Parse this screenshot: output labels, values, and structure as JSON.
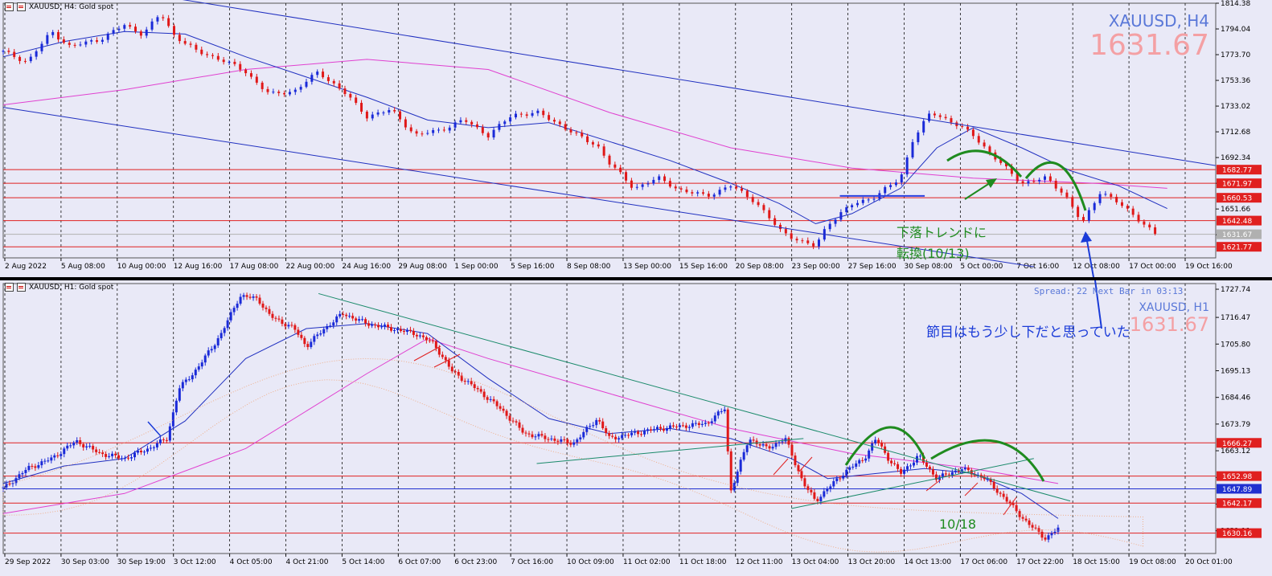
{
  "top": {
    "header": "XAUUSD, H4:  Gold spot",
    "symbol_label": "XAUUSD, H4",
    "price_label": "1631.67",
    "annotation_line1": "下落トレンドに",
    "annotation_line2": "転換(10/13)",
    "chart_data": {
      "type": "line",
      "ylim": [
        1613,
        1814.38
      ],
      "price_ticks": [
        "1814.38",
        "1794.04",
        "1773.70",
        "1753.36",
        "1733.02",
        "1712.68",
        "1692.34",
        "1672.00",
        "1651.66",
        "1631.32"
      ],
      "time_ticks": [
        "2 Aug 2022",
        "5 Aug 08:00",
        "10 Aug 00:00",
        "12 Aug 16:00",
        "17 Aug 08:00",
        "22 Aug 00:00",
        "24 Aug 16:00",
        "29 Aug 08:00",
        "1 Sep 00:00",
        "5 Sep 16:00",
        "8 Sep 08:00",
        "13 Sep 00:00",
        "15 Sep 16:00",
        "20 Sep 08:00",
        "23 Sep 00:00",
        "27 Sep 16:00",
        "30 Sep 08:00",
        "5 Oct 00:00",
        "7 Oct 16:00",
        "12 Oct 08:00",
        "17 Oct 00:00",
        "19 Oct 16:00"
      ],
      "levels": [
        {
          "price": 1682.77,
          "label": "1682.77",
          "color": "#e02020"
        },
        {
          "price": 1671.97,
          "label": "1671.97",
          "color": "#e02020"
        },
        {
          "price": 1660.53,
          "label": "1660.53",
          "color": "#e02020"
        },
        {
          "price": 1642.48,
          "label": "1642.48",
          "color": "#e02020"
        },
        {
          "price": 1631.67,
          "label": "1631.67",
          "color": "#b0b0b0"
        },
        {
          "price": 1621.77,
          "label": "1621.77",
          "color": "#e02020"
        }
      ],
      "price_path": [
        [
          0,
          1776
        ],
        [
          0.02,
          1768
        ],
        [
          0.04,
          1792
        ],
        [
          0.055,
          1780
        ],
        [
          0.08,
          1786
        ],
        [
          0.1,
          1797
        ],
        [
          0.115,
          1790
        ],
        [
          0.13,
          1806
        ],
        [
          0.14,
          1790
        ],
        [
          0.16,
          1776
        ],
        [
          0.18,
          1770
        ],
        [
          0.2,
          1760
        ],
        [
          0.22,
          1742
        ],
        [
          0.24,
          1745
        ],
        [
          0.26,
          1760
        ],
        [
          0.28,
          1745
        ],
        [
          0.3,
          1725
        ],
        [
          0.32,
          1730
        ],
        [
          0.34,
          1710
        ],
        [
          0.36,
          1714
        ],
        [
          0.38,
          1722
        ],
        [
          0.4,
          1710
        ],
        [
          0.42,
          1726
        ],
        [
          0.44,
          1728
        ],
        [
          0.46,
          1718
        ],
        [
          0.48,
          1706
        ],
        [
          0.49,
          1702
        ],
        [
          0.5,
          1688
        ],
        [
          0.52,
          1668
        ],
        [
          0.54,
          1676
        ],
        [
          0.56,
          1666
        ],
        [
          0.58,
          1662
        ],
        [
          0.6,
          1670
        ],
        [
          0.62,
          1658
        ],
        [
          0.64,
          1635
        ],
        [
          0.66,
          1625
        ],
        [
          0.67,
          1622
        ],
        [
          0.68,
          1640
        ],
        [
          0.7,
          1655
        ],
        [
          0.72,
          1662
        ],
        [
          0.74,
          1676
        ],
        [
          0.75,
          1706
        ],
        [
          0.765,
          1728
        ],
        [
          0.78,
          1722
        ],
        [
          0.8,
          1710
        ],
        [
          0.82,
          1690
        ],
        [
          0.84,
          1672
        ],
        [
          0.86,
          1676
        ],
        [
          0.875,
          1664
        ],
        [
          0.89,
          1640
        ],
        [
          0.905,
          1666
        ],
        [
          0.92,
          1656
        ],
        [
          0.935,
          1645
        ],
        [
          0.95,
          1631.67
        ]
      ],
      "ma_fast": [
        [
          0,
          1772
        ],
        [
          0.05,
          1784
        ],
        [
          0.1,
          1792
        ],
        [
          0.15,
          1790
        ],
        [
          0.2,
          1772
        ],
        [
          0.25,
          1756
        ],
        [
          0.3,
          1740
        ],
        [
          0.35,
          1722
        ],
        [
          0.4,
          1716
        ],
        [
          0.45,
          1720
        ],
        [
          0.5,
          1705
        ],
        [
          0.55,
          1690
        ],
        [
          0.6,
          1672
        ],
        [
          0.64,
          1656
        ],
        [
          0.67,
          1640
        ],
        [
          0.7,
          1648
        ],
        [
          0.74,
          1668
        ],
        [
          0.77,
          1700
        ],
        [
          0.8,
          1716
        ],
        [
          0.84,
          1700
        ],
        [
          0.88,
          1682
        ],
        [
          0.92,
          1670
        ],
        [
          0.96,
          1652
        ]
      ],
      "ma_slow": [
        [
          0,
          1734
        ],
        [
          0.1,
          1746
        ],
        [
          0.2,
          1762
        ],
        [
          0.3,
          1770
        ],
        [
          0.4,
          1762
        ],
        [
          0.5,
          1728
        ],
        [
          0.6,
          1700
        ],
        [
          0.7,
          1684
        ],
        [
          0.8,
          1676
        ],
        [
          0.9,
          1672
        ],
        [
          0.96,
          1668
        ]
      ],
      "channel_upper": [
        [
          0,
          1840
        ],
        [
          1,
          1686
        ]
      ],
      "channel_lower": [
        [
          0,
          1732
        ],
        [
          0.85,
          1606
        ]
      ],
      "hline_blue": {
        "price": 1662,
        "from": 0.69,
        "to": 0.76
      },
      "last_price": 1631.67
    }
  },
  "bottom": {
    "header": "XAUUSD, H1:  Gold spot",
    "spread_text": "Spread: 22   Next Bar in 03:13",
    "symbol_label": "XAUUSD, H1",
    "price_label": "1631.67",
    "annotation_main": "節目はもう少し下だと思っていた",
    "annotation_date": "10/18",
    "chart_data": {
      "type": "line",
      "ylim": [
        1622,
        1730
      ],
      "price_ticks": [
        "1727.74",
        "1716.47",
        "1705.80",
        "1695.13",
        "1684.46",
        "1673.79",
        "1663.12",
        "1652.45",
        "1641.78",
        "1631.11"
      ],
      "time_ticks": [
        "29 Sep 2022",
        "30 Sep 03:00",
        "30 Sep 19:00",
        "3 Oct 12:00",
        "4 Oct 05:00",
        "4 Oct 21:00",
        "5 Oct 14:00",
        "6 Oct 07:00",
        "6 Oct 23:00",
        "7 Oct 16:00",
        "10 Oct 09:00",
        "11 Oct 02:00",
        "11 Oct 18:00",
        "12 Oct 11:00",
        "13 Oct 04:00",
        "13 Oct 20:00",
        "14 Oct 13:00",
        "17 Oct 06:00",
        "17 Oct 22:00",
        "18 Oct 15:00",
        "19 Oct 08:00",
        "20 Oct 01:00"
      ],
      "levels": [
        {
          "price": 1666.27,
          "label": "1666.27",
          "color": "#e02020"
        },
        {
          "price": 1652.98,
          "label": "1652.98",
          "color": "#e02020"
        },
        {
          "price": 1647.89,
          "label": "1647.89",
          "color": "#2030d0"
        },
        {
          "price": 1642.17,
          "label": "1642.17",
          "color": "#e02020"
        },
        {
          "price": 1630.16,
          "label": "1630.16",
          "color": "#e02020"
        }
      ],
      "price_path": [
        [
          0,
          1648
        ],
        [
          0.02,
          1656
        ],
        [
          0.04,
          1660
        ],
        [
          0.06,
          1667
        ],
        [
          0.08,
          1662
        ],
        [
          0.1,
          1660
        ],
        [
          0.12,
          1664
        ],
        [
          0.135,
          1668
        ],
        [
          0.145,
          1688
        ],
        [
          0.16,
          1696
        ],
        [
          0.18,
          1710
        ],
        [
          0.195,
          1725
        ],
        [
          0.21,
          1724
        ],
        [
          0.22,
          1717
        ],
        [
          0.24,
          1712
        ],
        [
          0.25,
          1705
        ],
        [
          0.265,
          1712
        ],
        [
          0.28,
          1718
        ],
        [
          0.3,
          1714
        ],
        [
          0.32,
          1712
        ],
        [
          0.34,
          1710
        ],
        [
          0.355,
          1706
        ],
        [
          0.37,
          1695
        ],
        [
          0.39,
          1688
        ],
        [
          0.41,
          1680
        ],
        [
          0.43,
          1670
        ],
        [
          0.45,
          1668
        ],
        [
          0.47,
          1666
        ],
        [
          0.49,
          1676
        ],
        [
          0.5,
          1668
        ],
        [
          0.52,
          1670
        ],
        [
          0.54,
          1672
        ],
        [
          0.56,
          1673
        ],
        [
          0.58,
          1674
        ],
        [
          0.595,
          1680
        ],
        [
          0.6,
          1647
        ],
        [
          0.615,
          1668
        ],
        [
          0.63,
          1664
        ],
        [
          0.645,
          1668
        ],
        [
          0.66,
          1650
        ],
        [
          0.67,
          1643
        ],
        [
          0.68,
          1648
        ],
        [
          0.695,
          1655
        ],
        [
          0.71,
          1660
        ],
        [
          0.72,
          1668
        ],
        [
          0.73,
          1660
        ],
        [
          0.74,
          1654
        ],
        [
          0.755,
          1661
        ],
        [
          0.77,
          1652
        ],
        [
          0.79,
          1656
        ],
        [
          0.81,
          1652
        ],
        [
          0.83,
          1642
        ],
        [
          0.845,
          1634
        ],
        [
          0.86,
          1628
        ],
        [
          0.87,
          1632
        ]
      ],
      "ma_fast": [
        [
          0,
          1650
        ],
        [
          0.05,
          1657
        ],
        [
          0.1,
          1660
        ],
        [
          0.15,
          1675
        ],
        [
          0.2,
          1700
        ],
        [
          0.25,
          1712
        ],
        [
          0.3,
          1714
        ],
        [
          0.35,
          1710
        ],
        [
          0.4,
          1692
        ],
        [
          0.45,
          1676
        ],
        [
          0.5,
          1670
        ],
        [
          0.55,
          1672
        ],
        [
          0.6,
          1668
        ],
        [
          0.65,
          1660
        ],
        [
          0.68,
          1652
        ],
        [
          0.72,
          1654
        ],
        [
          0.76,
          1656
        ],
        [
          0.8,
          1654
        ],
        [
          0.84,
          1646
        ],
        [
          0.87,
          1636
        ]
      ],
      "ma_slow": [
        [
          0,
          1638
        ],
        [
          0.1,
          1646
        ],
        [
          0.2,
          1664
        ],
        [
          0.3,
          1694
        ],
        [
          0.35,
          1708
        ],
        [
          0.4,
          1700
        ],
        [
          0.5,
          1686
        ],
        [
          0.6,
          1672
        ],
        [
          0.7,
          1662
        ],
        [
          0.8,
          1656
        ],
        [
          0.87,
          1650
        ]
      ],
      "trend_upper": [
        [
          0.26,
          1726
        ],
        [
          0.88,
          1643
        ]
      ],
      "trend_support_1": [
        [
          0.44,
          1658
        ],
        [
          0.66,
          1668
        ]
      ],
      "trend_support_2": [
        [
          0.65,
          1640
        ],
        [
          0.85,
          1660
        ]
      ],
      "last_price": 1631.67
    }
  }
}
